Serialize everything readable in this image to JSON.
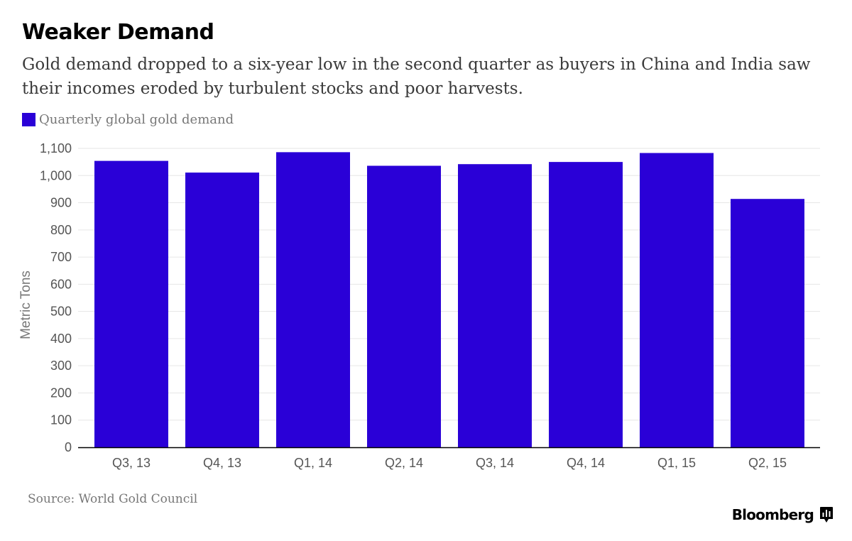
{
  "header": {
    "title": "Weaker Demand",
    "subtitle": "Gold demand dropped to a six-year low in the second quarter as buyers in China and India saw their incomes eroded by turbulent stocks and poor harvests."
  },
  "footer": {
    "source": "Source: World Gold Council",
    "brand": "Bloomberg"
  },
  "colors": {
    "bar": "#2a00d7",
    "grid": "#e6e6e6",
    "axis": "#000000",
    "tick_text": "#555555"
  },
  "chart_data": {
    "type": "bar",
    "title": "Weaker Demand",
    "ylabel": "Metric Tons",
    "xlabel": "",
    "ylim": [
      0,
      1100
    ],
    "yticks": [
      0,
      100,
      200,
      300,
      400,
      500,
      600,
      700,
      800,
      900,
      1000,
      1100
    ],
    "ytick_labels": [
      "0",
      "100",
      "200",
      "300",
      "400",
      "500",
      "600",
      "700",
      "800",
      "900",
      "1,000",
      "1,100"
    ],
    "categories": [
      "Q3, 13",
      "Q4, 13",
      "Q1, 14",
      "Q2, 14",
      "Q3, 14",
      "Q4, 14",
      "Q1, 15",
      "Q2, 15"
    ],
    "series": [
      {
        "name": "Quarterly global gold demand",
        "values": [
          1054,
          1011,
          1086,
          1036,
          1042,
          1050,
          1083,
          914
        ]
      }
    ],
    "grid": true,
    "legend": "top-left"
  }
}
